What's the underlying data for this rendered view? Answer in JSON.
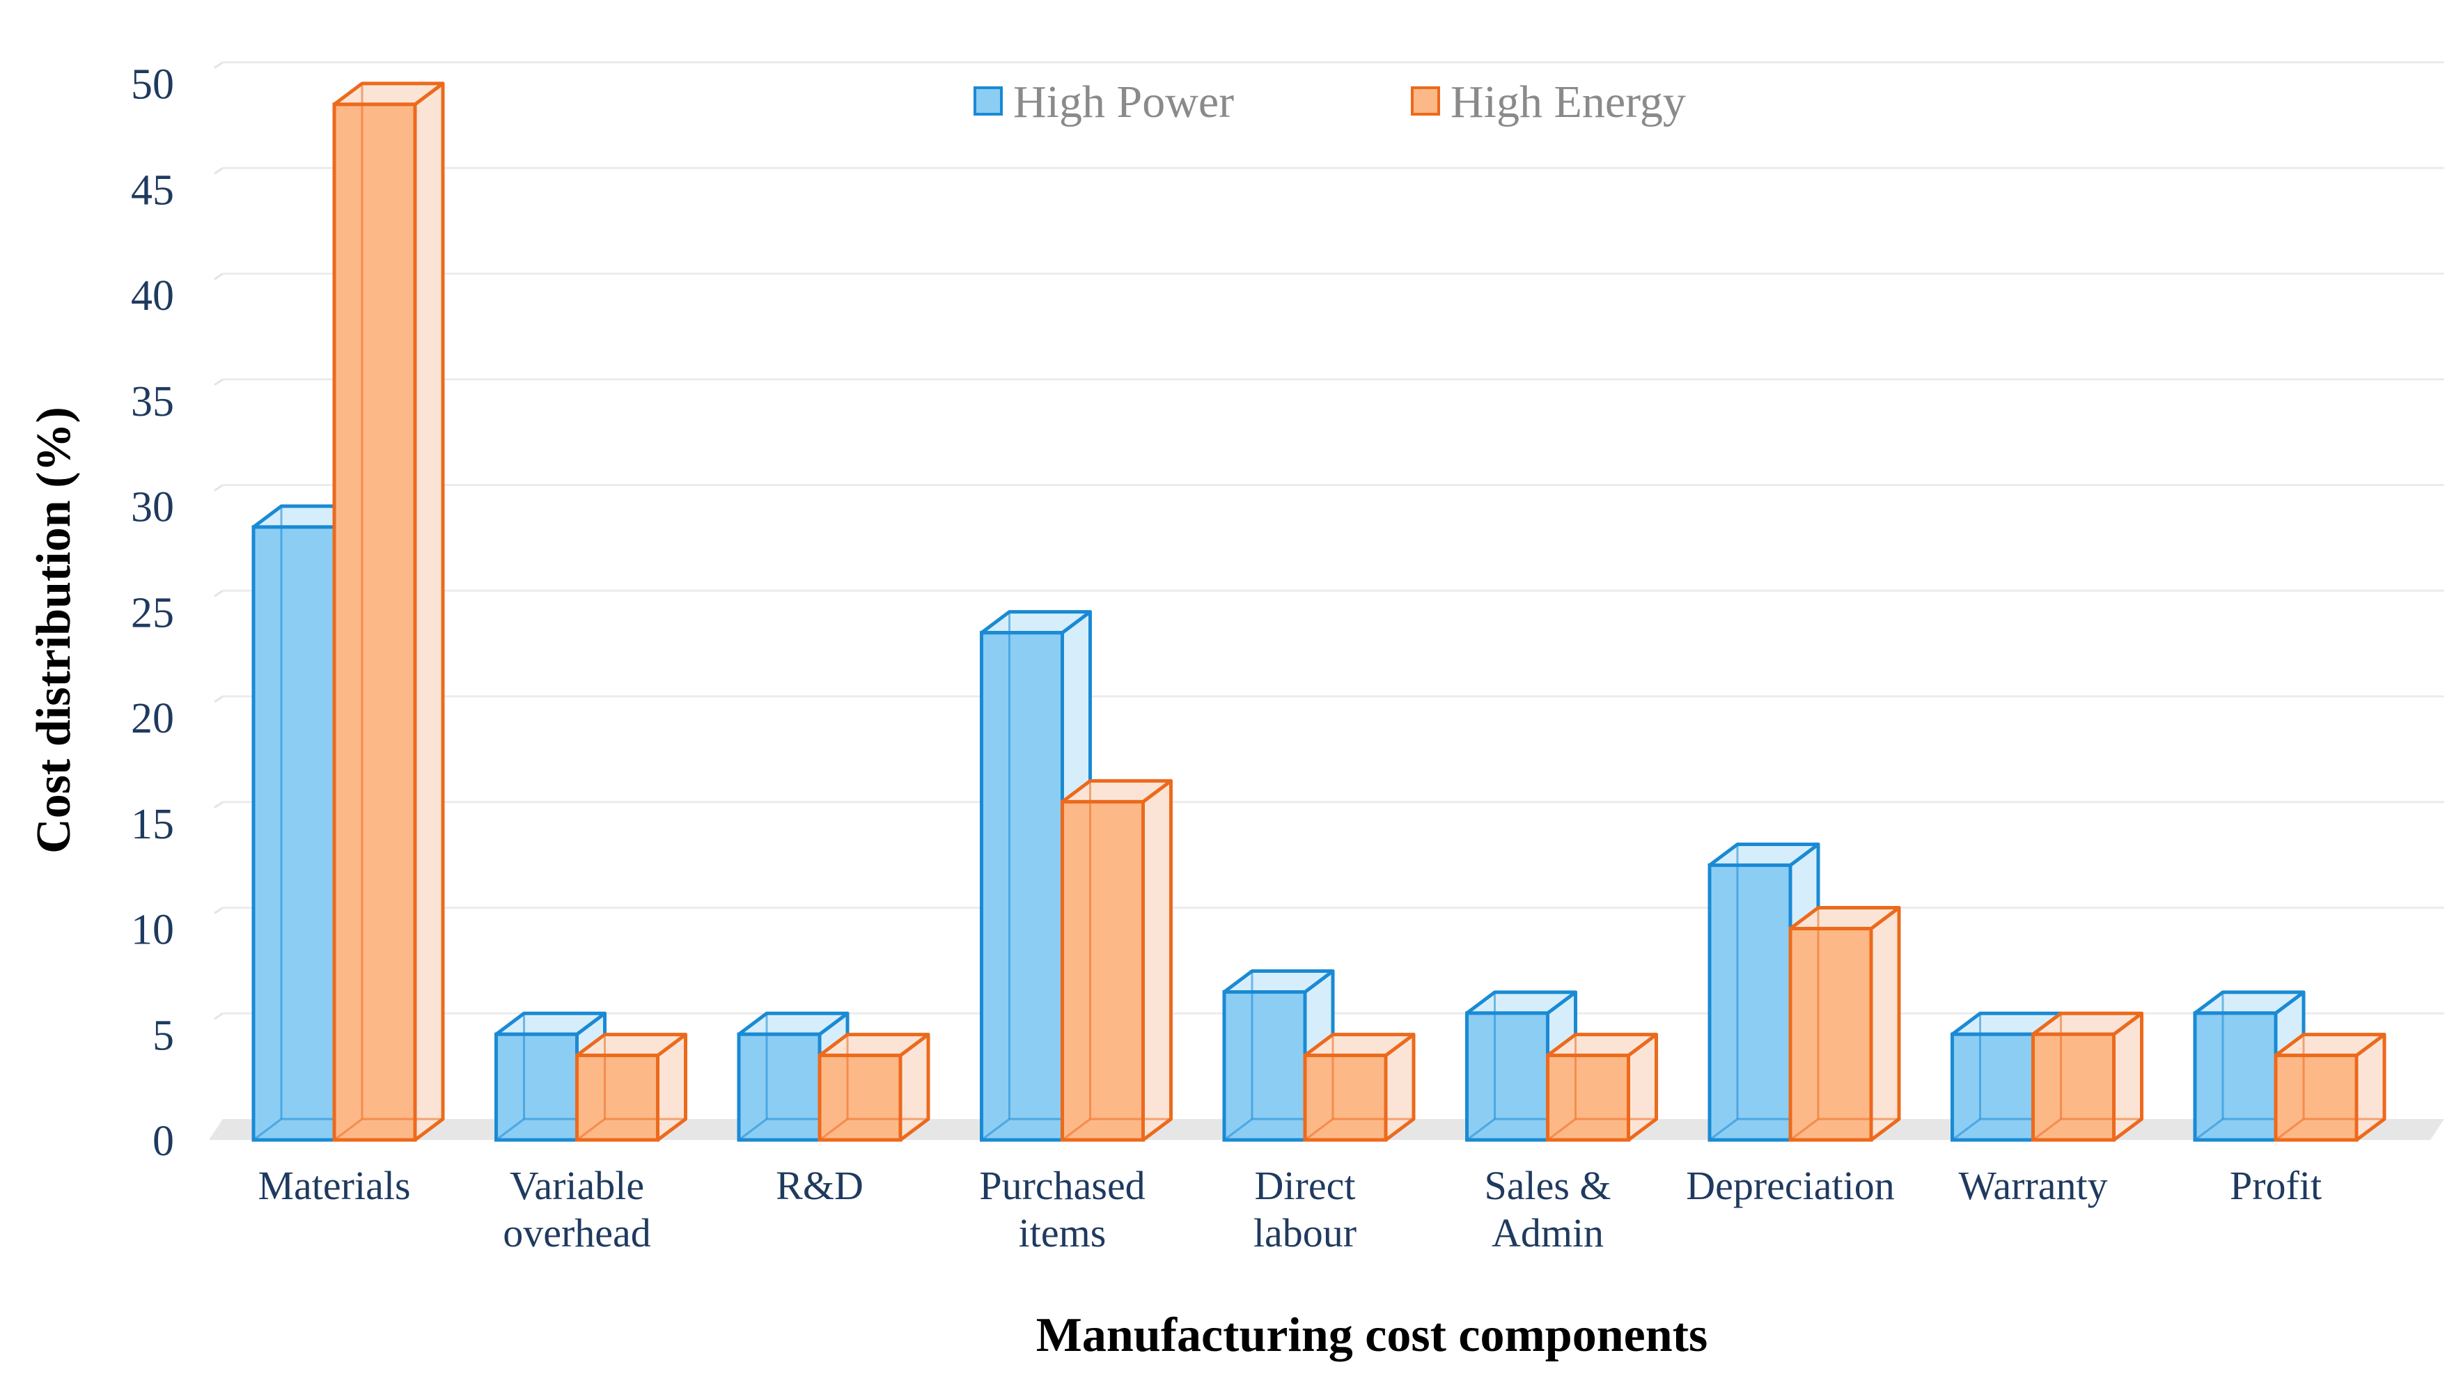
{
  "chart_data": {
    "type": "bar",
    "title": "",
    "xlabel": "Manufacturing cost components",
    "ylabel": "Cost distribution (%)",
    "ylim": [
      0,
      50
    ],
    "yticks": [
      0,
      5,
      10,
      15,
      20,
      25,
      30,
      35,
      40,
      45,
      50
    ],
    "grid": true,
    "legend_position": "top-center",
    "categories": [
      [
        "Materials"
      ],
      [
        "Variable",
        "overhead"
      ],
      [
        "R&D"
      ],
      [
        "Purchased",
        "items"
      ],
      [
        "Direct",
        "labour"
      ],
      [
        "Sales &",
        "Admin"
      ],
      [
        "Depreciation"
      ],
      [
        "Warranty"
      ],
      [
        "Profit"
      ]
    ],
    "series": [
      {
        "name": "High Power",
        "color_front": "#8ccdf4",
        "color_side": "#d6eefb",
        "color_edge": "#1a8ad4",
        "values": [
          29,
          5,
          5,
          24,
          7,
          6,
          13,
          5,
          6
        ]
      },
      {
        "name": "High Energy",
        "color_front": "#fdb888",
        "color_side": "#fbe4d6",
        "color_edge": "#ec6a1c",
        "values": [
          49,
          4,
          4,
          16,
          4,
          4,
          10,
          5,
          4
        ]
      }
    ]
  }
}
